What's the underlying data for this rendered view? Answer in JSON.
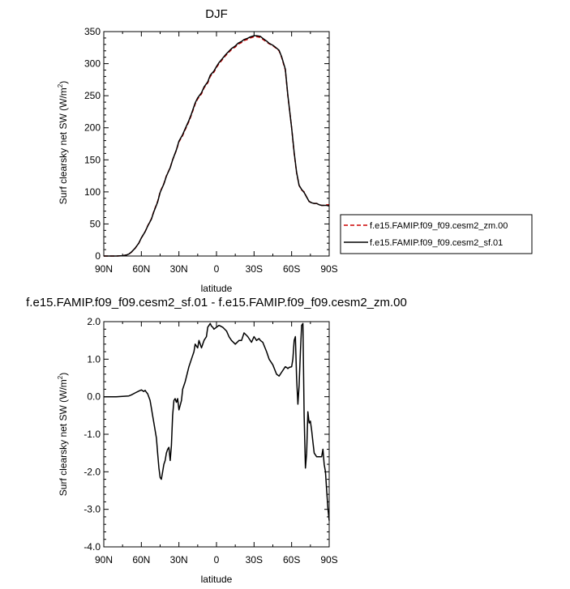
{
  "chart_data": [
    {
      "type": "line",
      "title": "DJF",
      "xlabel": "latitude",
      "ylabel": "Surf clearsky net SW (W/m²)",
      "ylabel_main": "Surf clearsky net SW (W/m",
      "ylabel_sup": "2",
      "ylabel_tail": ")",
      "xlim": [
        90,
        -90
      ],
      "ylim": [
        0,
        350
      ],
      "x_ticks": [
        90,
        60,
        30,
        0,
        -30,
        -60,
        -90
      ],
      "x_tick_labels": [
        "90N",
        "60N",
        "30N",
        "0",
        "30S",
        "60S",
        "90S"
      ],
      "y_ticks": [
        0,
        50,
        100,
        150,
        200,
        250,
        300,
        350
      ],
      "y_tick_labels": [
        "0",
        "50",
        "100",
        "150",
        "200",
        "250",
        "300",
        "350"
      ],
      "legend_position": "right",
      "series": [
        {
          "name": "f.e15.FAMIP.f09_f09.cesm2_zm.00",
          "color": "#cc0000",
          "dash": "dashed",
          "x": [
            90,
            85,
            80,
            75,
            72,
            70,
            68,
            65,
            62,
            60,
            57,
            55,
            52,
            50,
            47,
            45,
            42,
            40,
            37,
            35,
            32,
            30,
            27,
            25,
            22,
            20,
            17,
            15,
            12,
            10,
            7,
            5,
            2,
            0,
            -2,
            -5,
            -7,
            -10,
            -12,
            -15,
            -17,
            -20,
            -22,
            -25,
            -27,
            -30,
            -32,
            -35,
            -37,
            -40,
            -42,
            -45,
            -47,
            -50,
            -52,
            -55,
            -57,
            -60,
            -62,
            -64,
            -66,
            -68,
            -70,
            -72,
            -74,
            -76,
            -78,
            -80,
            -82,
            -84,
            -86,
            -88,
            -90
          ],
          "y": [
            0,
            0,
            0,
            0.5,
            1.5,
            3,
            6,
            12,
            20,
            28,
            38,
            47,
            58,
            70,
            85,
            100,
            113,
            125,
            138,
            150,
            165,
            178,
            188,
            197,
            210,
            220,
            237,
            245,
            253,
            262,
            270,
            280,
            287,
            294,
            300,
            307,
            312,
            318,
            322,
            326,
            330,
            333,
            336,
            338,
            340,
            342,
            342,
            341,
            338,
            334,
            331,
            328,
            325,
            320,
            310,
            290,
            250,
            200,
            160,
            130,
            110,
            103,
            100,
            92,
            85,
            83,
            82,
            82,
            80,
            79,
            79,
            80,
            80
          ]
        },
        {
          "name": "f.e15.FAMIP.f09_f09.cesm2_sf.01",
          "color": "#000000",
          "dash": "solid",
          "x": [
            90,
            85,
            80,
            75,
            72,
            70,
            68,
            65,
            62,
            60,
            57,
            55,
            52,
            50,
            47,
            45,
            42,
            40,
            37,
            35,
            32,
            30,
            27,
            25,
            22,
            20,
            17,
            15,
            12,
            10,
            7,
            5,
            2,
            0,
            -2,
            -5,
            -7,
            -10,
            -12,
            -15,
            -17,
            -20,
            -22,
            -25,
            -27,
            -30,
            -32,
            -35,
            -37,
            -40,
            -42,
            -45,
            -47,
            -50,
            -52,
            -55,
            -57,
            -60,
            -62,
            -64,
            -66,
            -68,
            -70,
            -72,
            -74,
            -76,
            -78,
            -80,
            -82,
            -84,
            -86,
            -88,
            -90
          ],
          "y": [
            0,
            0,
            0,
            0.5,
            1.5,
            3,
            6.1,
            12.1,
            20.1,
            28.2,
            37.9,
            46.5,
            57.5,
            69.3,
            84.2,
            99.2,
            112.3,
            124.5,
            137.6,
            150,
            165.8,
            179.2,
            189.4,
            198.5,
            211.4,
            221.6,
            238.7,
            246.7,
            254.6,
            263.5,
            271.5,
            281.9,
            288.6,
            295.6,
            301.6,
            308.6,
            313.4,
            319.5,
            323.5,
            327.5,
            331.5,
            334.6,
            337.6,
            339.7,
            341.6,
            343.5,
            343.6,
            342.6,
            339.5,
            335.2,
            331.8,
            328.7,
            325.8,
            320.8,
            311,
            291.5,
            251,
            199.8,
            161.5,
            130.5,
            110.2,
            103.8,
            99,
            92,
            85,
            83,
            82,
            82,
            80,
            79,
            79,
            79,
            78
          ]
        }
      ]
    },
    {
      "type": "line",
      "title": "f.e15.FAMIP.f09_f09.cesm2_sf.01 - f.e15.FAMIP.f09_f09.cesm2_zm.00",
      "xlabel": "latitude",
      "ylabel": "Surf clearsky net SW (W/m²)",
      "ylabel_main": "Surf clearsky net SW (W/m",
      "ylabel_sup": "2",
      "ylabel_tail": ")",
      "xlim": [
        90,
        -90
      ],
      "ylim": [
        -4,
        2
      ],
      "x_ticks": [
        90,
        60,
        30,
        0,
        -30,
        -60,
        -90
      ],
      "x_tick_labels": [
        "90N",
        "60N",
        "30N",
        "0",
        "30S",
        "60S",
        "90S"
      ],
      "y_ticks": [
        2,
        1,
        0,
        -1,
        -2,
        -3,
        -4
      ],
      "y_tick_labels": [
        "2.0",
        "1.0",
        "0.0",
        "-1.0",
        "-2.0",
        "-3.0",
        "-4.0"
      ],
      "series": [
        {
          "color": "#000000",
          "dash": "solid",
          "x": [
            90,
            80,
            70,
            68,
            65,
            62,
            60,
            58,
            57,
            56,
            55,
            53,
            52,
            51,
            50,
            48,
            47,
            46,
            45,
            44,
            43,
            42,
            41,
            40,
            39,
            38,
            37,
            36,
            35,
            34,
            33,
            32,
            31,
            30,
            28,
            27,
            25,
            22,
            20,
            18,
            17,
            15,
            14,
            12,
            10,
            8,
            7,
            5,
            4,
            3,
            2,
            0,
            -2,
            -5,
            -8,
            -10,
            -12,
            -15,
            -18,
            -20,
            -22,
            -25,
            -28,
            -30,
            -32,
            -34,
            -35,
            -37,
            -40,
            -42,
            -45,
            -48,
            -50,
            -52,
            -55,
            -56,
            -57,
            -58,
            -60,
            -61,
            -62,
            -63,
            -64,
            -65,
            -66,
            -67,
            -68,
            -69,
            -70,
            -71,
            -72,
            -73,
            -74,
            -75,
            -76,
            -77,
            -78,
            -80,
            -82,
            -84,
            -85,
            -86,
            -87,
            -88,
            -89,
            -90
          ],
          "y": [
            0,
            0,
            0.02,
            0.05,
            0.1,
            0.15,
            0.18,
            0.14,
            0.17,
            0.12,
            0.08,
            -0.1,
            -0.3,
            -0.5,
            -0.7,
            -1.1,
            -1.5,
            -1.9,
            -2.15,
            -2.2,
            -2.0,
            -1.8,
            -1.7,
            -1.5,
            -1.4,
            -1.35,
            -1.7,
            -1.3,
            -0.5,
            -0.1,
            -0.05,
            -0.15,
            -0.05,
            -0.35,
            -0.1,
            0.2,
            0.4,
            0.8,
            1.0,
            1.2,
            1.4,
            1.3,
            1.5,
            1.3,
            1.5,
            1.6,
            1.85,
            1.95,
            1.88,
            1.85,
            1.8,
            1.85,
            1.9,
            1.85,
            1.75,
            1.6,
            1.5,
            1.4,
            1.5,
            1.5,
            1.7,
            1.6,
            1.45,
            1.6,
            1.5,
            1.55,
            1.5,
            1.45,
            1.2,
            1.0,
            0.85,
            0.6,
            0.55,
            0.65,
            0.8,
            0.78,
            0.75,
            0.78,
            0.8,
            1.0,
            1.5,
            1.6,
            0.5,
            -0.2,
            0.3,
            1.2,
            1.9,
            1.95,
            -0.5,
            -1.9,
            -1.5,
            -0.4,
            -0.7,
            -0.65,
            -0.9,
            -1.2,
            -1.5,
            -1.6,
            -1.6,
            -1.6,
            -1.4,
            -1.8,
            -2.0,
            -2.5,
            -3.0,
            -3.3
          ]
        }
      ]
    }
  ]
}
